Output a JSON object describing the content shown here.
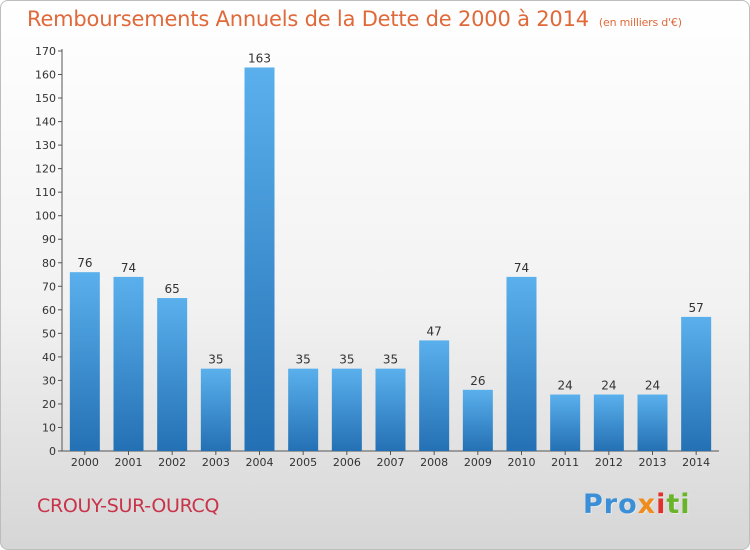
{
  "header": {
    "title": "Remboursements Annuels de la Dette de 2000 à 2014",
    "subtitle": "(en milliers d'€)"
  },
  "footer": {
    "commune": "CROUY-SUR-OURCQ",
    "logo_parts": [
      "Pro",
      "x",
      "i",
      "ti"
    ]
  },
  "colors": {
    "bar_top": "#5ab0ec",
    "bar_bottom": "#2470b4",
    "title": "#e0693a",
    "commune": "#c8334a"
  },
  "chart_data": {
    "type": "bar",
    "title": "Remboursements Annuels de la Dette de 2000 à 2014",
    "categories": [
      "2000",
      "2001",
      "2002",
      "2003",
      "2004",
      "2005",
      "2006",
      "2007",
      "2008",
      "2009",
      "2010",
      "2011",
      "2012",
      "2013",
      "2014"
    ],
    "values": [
      76,
      74,
      65,
      35,
      163,
      35,
      35,
      35,
      47,
      26,
      74,
      24,
      24,
      24,
      57
    ],
    "ylim": [
      0,
      170
    ],
    "ytick_step": 10,
    "grid": false,
    "data_labels": true
  }
}
